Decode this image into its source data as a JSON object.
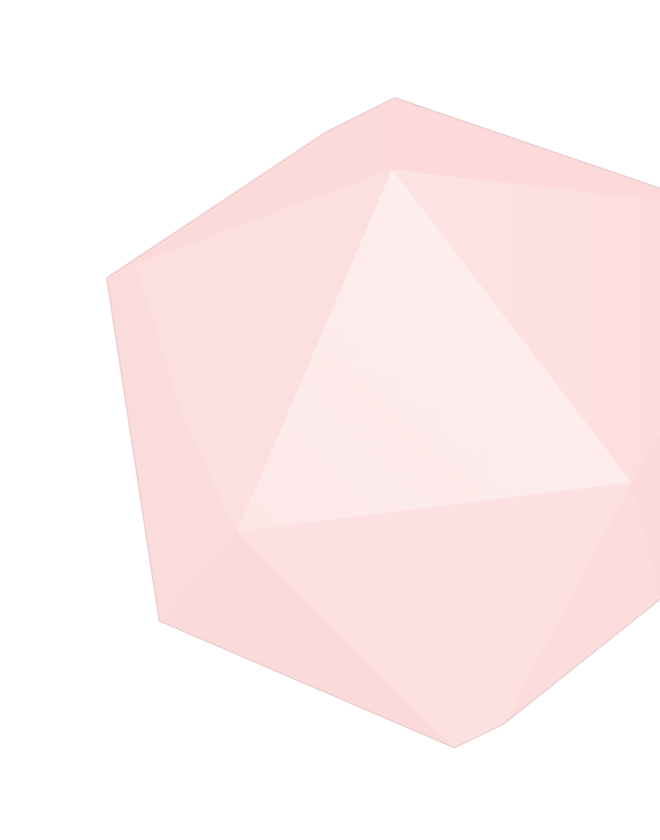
{
  "graphic": {
    "subject": "icosahedron-shape",
    "colors": {
      "background": "#ffffff",
      "outline": "#e8cfcf",
      "face_upper_left": "#fcdcdc",
      "face_top": "#fde0e0",
      "face_left": "#fddede",
      "face_center_highlight": "#feeceb",
      "face_right_upper": "#fde2e2",
      "face_right": "#fde1e1",
      "face_lower_center": "#fde2e3",
      "face_lower_left": "#fcdcdc",
      "face_bottom_right": "#fddfdf"
    }
  }
}
